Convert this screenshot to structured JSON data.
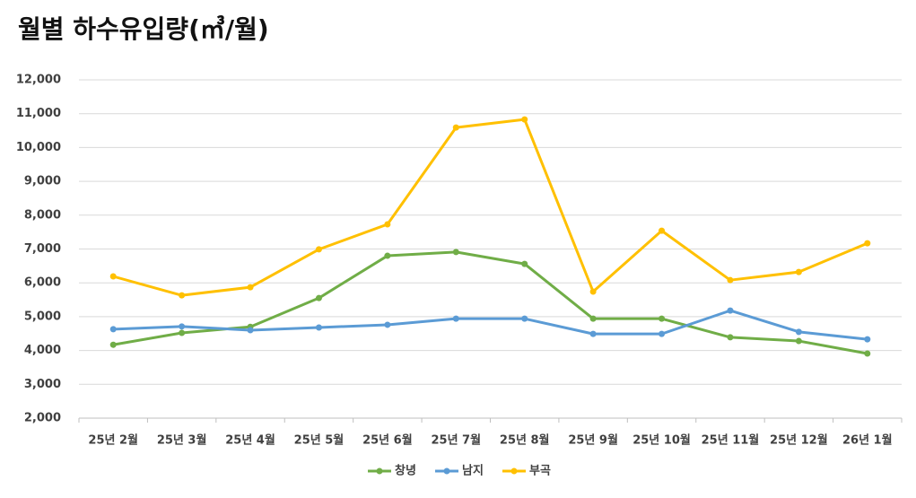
{
  "chart_data": {
    "type": "line",
    "title": "월별 하수유입량(㎥/월)",
    "categories": [
      "25년 2월",
      "25년 3월",
      "25년 4월",
      "25년 5월",
      "25년 6월",
      "25년 7월",
      "25년 8월",
      "25년 9월",
      "25년 10월",
      "25년 11월",
      "25년 12월",
      "26년 1월"
    ],
    "series": [
      {
        "name": "창녕",
        "color": "#70ad47",
        "values": [
          4170,
          4520,
          4700,
          5550,
          6800,
          6910,
          6560,
          4940,
          4940,
          4390,
          4280,
          3910
        ]
      },
      {
        "name": "남지",
        "color": "#5b9bd5",
        "values": [
          4630,
          4710,
          4600,
          4680,
          4760,
          4940,
          4940,
          4490,
          4490,
          5180,
          4550,
          4330
        ]
      },
      {
        "name": "부곡",
        "color": "#ffc000",
        "values": [
          6190,
          5630,
          5870,
          6990,
          7730,
          10590,
          10830,
          5740,
          7540,
          6080,
          6320,
          7170
        ]
      }
    ],
    "ylim": [
      2000,
      12000
    ],
    "yticks": [
      {
        "value": 2000,
        "label": "2,000"
      },
      {
        "value": 3000,
        "label": "3,000"
      },
      {
        "value": 4000,
        "label": "4,000"
      },
      {
        "value": 5000,
        "label": "5,000"
      },
      {
        "value": 6000,
        "label": "6,000"
      },
      {
        "value": 7000,
        "label": "7,000"
      },
      {
        "value": 8000,
        "label": "8,000"
      },
      {
        "value": 9000,
        "label": "9,000"
      },
      {
        "value": 10000,
        "label": "10,000"
      },
      {
        "value": 11000,
        "label": "11,000"
      },
      {
        "value": 12000,
        "label": "12,000"
      }
    ],
    "grid": true,
    "legend": "bottom"
  }
}
